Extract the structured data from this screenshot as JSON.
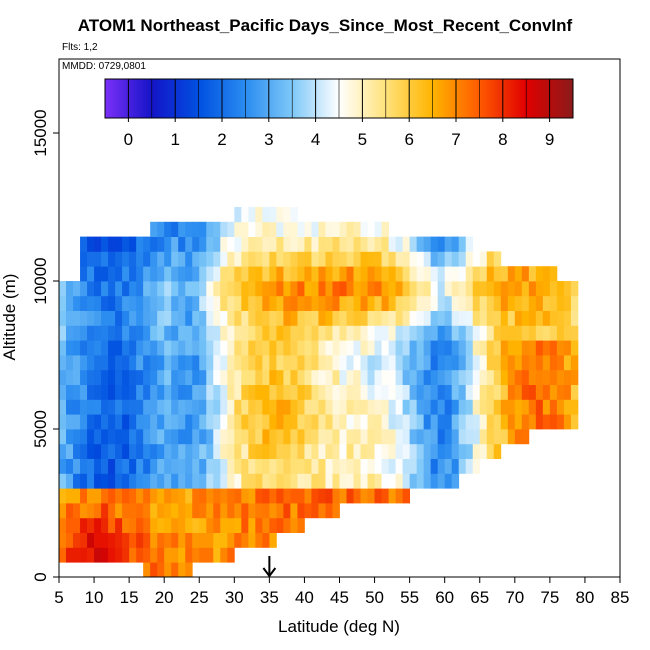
{
  "chart_data": {
    "type": "heatmap",
    "title": "ATOM1 Northeast_Pacific Days_Since_Most_Recent_ConvInf",
    "flights_label": "Flts: 1,2",
    "mmdd_label": "MMDD: 0729,0801",
    "xlabel": "Latitude (deg N)",
    "ylabel": "Altitude (m)",
    "xlim": [
      5,
      85
    ],
    "ylim": [
      0,
      17500
    ],
    "xticks": [
      "5",
      "10",
      "15",
      "20",
      "25",
      "30",
      "35",
      "40",
      "45",
      "50",
      "55",
      "60",
      "65",
      "70",
      "75",
      "80",
      "85"
    ],
    "yticks": [
      "0",
      "5000",
      "10000",
      "15000"
    ],
    "grid": false,
    "colorbar": {
      "placement": "top-inside",
      "min": -0.5,
      "max": 9.5,
      "tick_labels": [
        "0",
        "1",
        "2",
        "3",
        "4",
        "5",
        "6",
        "7",
        "8",
        "9"
      ],
      "colors": [
        "#7b2ff7",
        "#1414c8",
        "#0050e0",
        "#2a8cf0",
        "#7ec8f8",
        "#ffffff",
        "#ffe27a",
        "#ffb400",
        "#ff5a00",
        "#e00000",
        "#8b1a1a"
      ]
    },
    "marker": {
      "latitude": 35,
      "description": "arrow"
    },
    "latitude_bins": [
      5,
      6,
      7,
      8,
      9,
      10,
      11,
      12,
      13,
      14,
      15,
      16,
      17,
      18,
      19,
      20,
      21,
      22,
      23,
      24,
      25,
      26,
      27,
      28,
      29,
      30,
      31,
      32,
      33,
      34,
      35,
      36,
      37,
      38,
      39,
      40,
      41,
      42,
      43,
      44,
      45,
      46,
      47,
      48,
      49,
      50,
      51,
      52,
      53,
      54,
      55,
      56,
      57,
      58,
      59,
      60,
      61,
      62,
      63,
      64,
      65,
      66,
      67,
      68,
      69,
      70,
      71,
      72,
      73,
      74,
      75,
      76,
      77,
      78
    ],
    "altitude_bins": [
      500,
      1000,
      1500,
      2000,
      2500,
      3000,
      3500,
      4000,
      4500,
      5000,
      5500,
      6000,
      6500,
      7000,
      7500,
      8000,
      8500,
      9000,
      9500,
      10000,
      10500,
      11000,
      11500,
      12000,
      12500
    ],
    "coverage_top_m": [
      10000,
      10000,
      10000,
      11500,
      11500,
      11500,
      11500,
      11500,
      11500,
      11500,
      11500,
      11500,
      11500,
      12000,
      12000,
      12000,
      12000,
      12000,
      12000,
      12000,
      12000,
      12000,
      12000,
      12000,
      12000,
      12500,
      12500,
      13000,
      13000,
      13000,
      13000,
      13000,
      12500,
      12500,
      12000,
      12000,
      12000,
      12000,
      12000,
      12000,
      12000,
      12000,
      12000,
      12000,
      12000,
      12000,
      12000,
      11500,
      11500,
      11500,
      11500,
      11500,
      11500,
      11500,
      11500,
      11500,
      11500,
      11500,
      11500,
      11000,
      11000,
      11000,
      11000,
      10500,
      10500,
      10500,
      10500,
      10500,
      10500,
      10500,
      10500,
      10000,
      10000,
      10000
    ],
    "coverage_bottom_m": [
      500,
      500,
      500,
      500,
      500,
      500,
      500,
      500,
      500,
      500,
      500,
      500,
      0,
      0,
      0,
      0,
      0,
      0,
      0,
      500,
      500,
      500,
      500,
      500,
      500,
      1000,
      1000,
      1000,
      1000,
      1000,
      1000,
      1500,
      1500,
      1500,
      1500,
      2000,
      2000,
      2000,
      2000,
      2000,
      2500,
      2500,
      2500,
      2500,
      2500,
      2500,
      2500,
      2500,
      2500,
      2500,
      3000,
      3000,
      3000,
      3000,
      3000,
      3000,
      3000,
      3500,
      3500,
      3500,
      4000,
      4000,
      4000,
      4500,
      4500,
      4500,
      4500,
      5000,
      5000,
      5000,
      5000,
      5000,
      5000,
      5000
    ],
    "pattern_description": "Values 0-9 days. Below ~4 km mostly 6-9 (yellow/orange/red), highest near surface at 5-18N. Above ~4 km: 1-3 (blue) at 5-30N and 55-62N, 4-6 (light) around 35-50N mid-levels, 6-8 in the 9-11 km band near 30-70N and at 64-78N below 8 km."
  }
}
